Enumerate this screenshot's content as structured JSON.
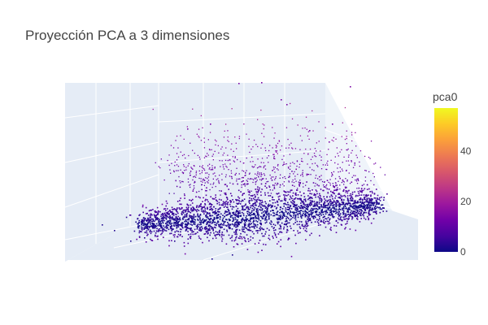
{
  "chart_data": {
    "type": "scatter",
    "title": "Proyección PCA a 3 dimensiones",
    "dimensions": 3,
    "color_by": "pca0",
    "colorbar": {
      "title": "pca0",
      "range": [
        0,
        57
      ],
      "ticks": [
        0,
        20,
        40
      ],
      "colorscale": [
        "#0d0887",
        "#46039f",
        "#7201a8",
        "#9c179e",
        "#bd3786",
        "#d8576b",
        "#ed7953",
        "#fb9f3a",
        "#fdca26",
        "#f0f921"
      ]
    },
    "point_color": "#0d0887",
    "scene_background": "#e5ecf6",
    "grid": true,
    "legend": "colorbar-right"
  }
}
